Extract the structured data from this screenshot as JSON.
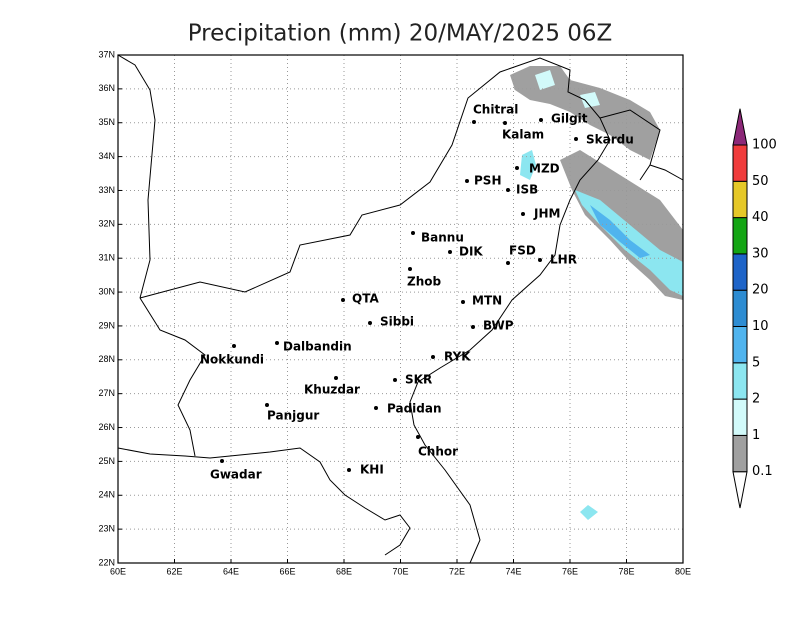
{
  "map": {
    "title": "Precipitation (mm) 20/MAY/2025 06Z",
    "xlim": [
      60,
      80
    ],
    "ylim": [
      22,
      37
    ],
    "xticks": [
      {
        "value": 60,
        "label": "60E"
      },
      {
        "value": 62,
        "label": "62E"
      },
      {
        "value": 64,
        "label": "64E"
      },
      {
        "value": 66,
        "label": "66E"
      },
      {
        "value": 68,
        "label": "68E"
      },
      {
        "value": 70,
        "label": "70E"
      },
      {
        "value": 72,
        "label": "72E"
      },
      {
        "value": 74,
        "label": "74E"
      },
      {
        "value": 76,
        "label": "76E"
      },
      {
        "value": 78,
        "label": "78E"
      },
      {
        "value": 80,
        "label": "80E"
      }
    ],
    "yticks": [
      {
        "value": 22,
        "label": "22N"
      },
      {
        "value": 23,
        "label": "23N"
      },
      {
        "value": 24,
        "label": "24N"
      },
      {
        "value": 25,
        "label": "25N"
      },
      {
        "value": 26,
        "label": "26N"
      },
      {
        "value": 27,
        "label": "27N"
      },
      {
        "value": 28,
        "label": "28N"
      },
      {
        "value": 29,
        "label": "29N"
      },
      {
        "value": 30,
        "label": "30N"
      },
      {
        "value": 31,
        "label": "31N"
      },
      {
        "value": 32,
        "label": "32N"
      },
      {
        "value": 33,
        "label": "33N"
      },
      {
        "value": 34,
        "label": "34N"
      },
      {
        "value": 35,
        "label": "35N"
      },
      {
        "value": 36,
        "label": "36N"
      },
      {
        "value": 37,
        "label": "37N"
      }
    ],
    "grid": true,
    "cities": [
      "Chitral",
      "Gilgit",
      "Kalam",
      "Skardu",
      "MZD",
      "PSH",
      "ISB",
      "JHM",
      "Bannu",
      "DIK",
      "FSD",
      "LHR",
      "Zhob",
      "QTA",
      "MTN",
      "Sibbi",
      "BWP",
      "Dalbandin",
      "Nokkundi",
      "RYK",
      "Khuzdar",
      "SKR",
      "Padidan",
      "Panjgur",
      "Chhor",
      "Gwadar",
      "KHI"
    ],
    "colorbar": {
      "levels": [
        0.1,
        1,
        2,
        5,
        10,
        20,
        30,
        40,
        50,
        100
      ],
      "colors": [
        "#ffffff",
        "#a0a0a0",
        "#d2fafa",
        "#8ce6f0",
        "#50b4ee",
        "#2d8cd2",
        "#1e64c8",
        "#14a514",
        "#e6c828",
        "#f03c3c",
        "#8c2878"
      ]
    }
  }
}
